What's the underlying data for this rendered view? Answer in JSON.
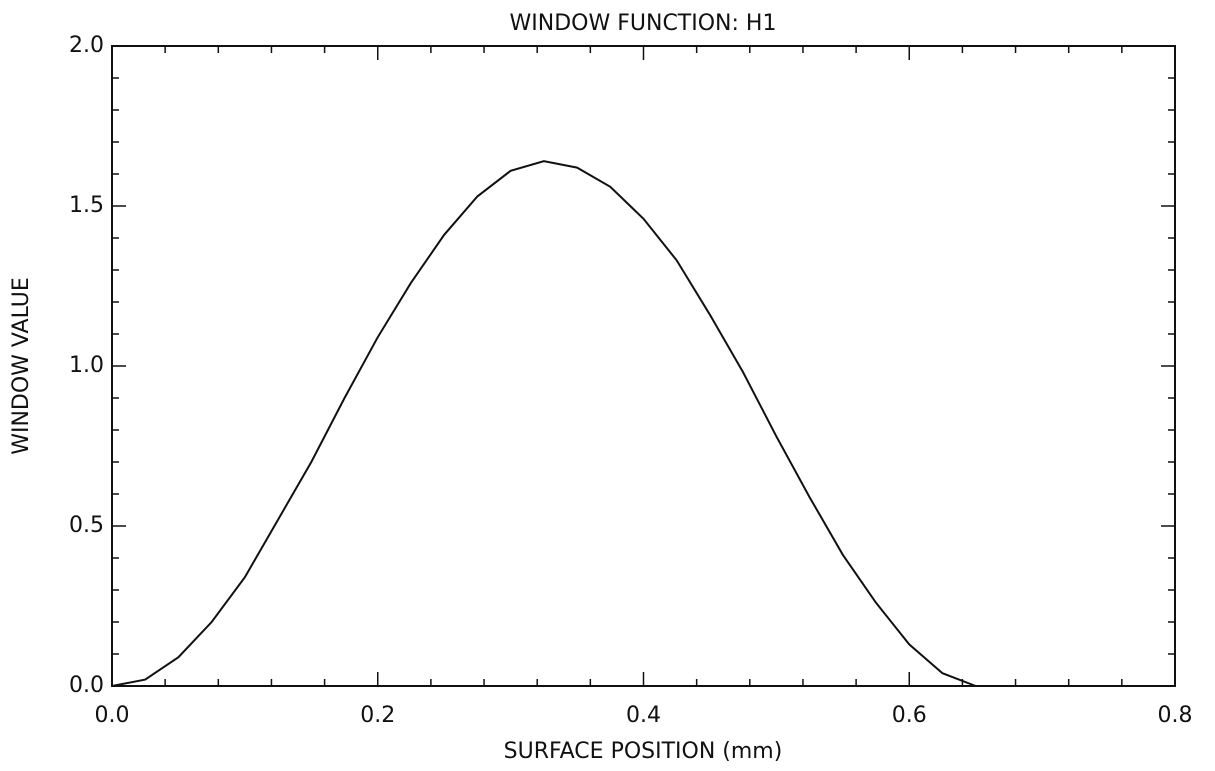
{
  "chart_data": {
    "type": "line",
    "title": "WINDOW FUNCTION: H1",
    "x_label": "SURFACE POSITION (mm)",
    "y_label": "WINDOW VALUE",
    "x": [
      0,
      0.025,
      0.05,
      0.075,
      0.1,
      0.125,
      0.15,
      0.175,
      0.2,
      0.225,
      0.25,
      0.275,
      0.3,
      0.325,
      0.35,
      0.375,
      0.4,
      0.425,
      0.45,
      0.475,
      0.5,
      0.525,
      0.55,
      0.575,
      0.6,
      0.625,
      0.65
    ],
    "series": [
      {
        "color": "#111111",
        "values": [
          0,
          0.02,
          0.09,
          0.2,
          0.34,
          0.52,
          0.7,
          0.9,
          1.09,
          1.26,
          1.41,
          1.53,
          1.61,
          1.64,
          1.62,
          1.56,
          1.46,
          1.33,
          1.16,
          0.98,
          0.78,
          0.59,
          0.41,
          0.26,
          0.13,
          0.04,
          0
        ]
      }
    ],
    "xlim": [
      0,
      0.8
    ],
    "ylim": [
      0,
      2
    ],
    "xticks": [
      {
        "value": 0,
        "label": "0.0"
      },
      0.2,
      0.4,
      0.6,
      0.8
    ],
    "yticks": [
      {
        "value": 0,
        "label": "0.0"
      },
      0.5,
      {
        "value": 1,
        "label": "1.0"
      },
      1.5,
      {
        "value": 2,
        "label": "2.0"
      }
    ],
    "x_minor_ticks": [
      0.04,
      0.08,
      0.12,
      0.16,
      0.24,
      0.28,
      0.32,
      0.36,
      0.44,
      0.48,
      0.52,
      0.56,
      0.64,
      0.68,
      0.72,
      0.76
    ],
    "y_minor_ticks": [
      0.1,
      0.2,
      0.3,
      0.4,
      0.6,
      0.7,
      0.8,
      0.9,
      1.1,
      1.2,
      1.3,
      1.4,
      1.6,
      1.7,
      1.8,
      1.9
    ],
    "grid": false
  }
}
